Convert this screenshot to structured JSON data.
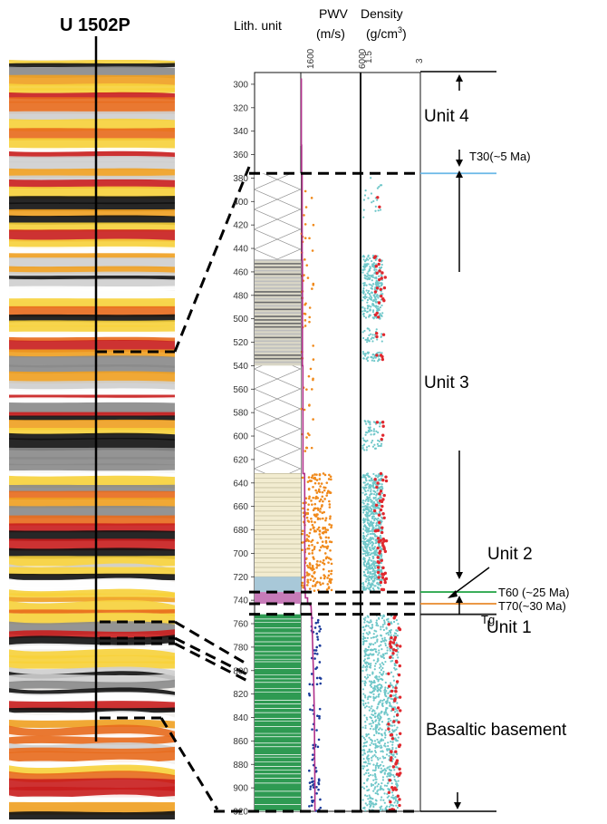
{
  "site_label": "U 1502P",
  "headers": {
    "lith": "Lith. unit",
    "pwv": "PWV",
    "pwv_unit": "(m/s)",
    "density": "Density",
    "density_unit": "(g/cm",
    "density_unit_sup": "3",
    "density_unit_close": ")"
  },
  "pwv_scale": {
    "min_label": "1600",
    "max_label": "6000",
    "min": 1600,
    "max": 6000
  },
  "density_scale": {
    "min_label": "1.5",
    "max_label": "3",
    "min": 1.5,
    "max": 3
  },
  "depth_ticks": [
    300,
    320,
    340,
    360,
    380,
    400,
    420,
    440,
    460,
    480,
    500,
    520,
    540,
    560,
    580,
    600,
    620,
    640,
    660,
    680,
    700,
    720,
    740,
    760,
    780,
    800,
    820,
    840,
    860,
    880,
    900,
    920
  ],
  "units": {
    "unit4": "Unit 4",
    "unit3": "Unit 3",
    "unit2": "Unit 2",
    "unit1": "Unit 1",
    "basement": "Basaltic basement"
  },
  "horizons": [
    {
      "label": "T30(~5 Ma)",
      "depth": 376,
      "color": "#6bb8e8"
    },
    {
      "label": "T60 (~25 Ma)",
      "depth": 733,
      "color": "#2ea84f"
    },
    {
      "label": "T70(~30 Ma)",
      "depth": 743,
      "color": "#e8892b"
    },
    {
      "label": "Tg",
      "depth": 752,
      "color": "#222222"
    }
  ],
  "pwv_profile": [
    [
      295,
      1640
    ],
    [
      352,
      1640
    ],
    [
      352,
      1660
    ],
    [
      376,
      1660
    ],
    [
      376,
      1700
    ],
    [
      450,
      1700
    ],
    [
      450,
      1720
    ],
    [
      540,
      1720
    ],
    [
      540,
      1750
    ],
    [
      600,
      1760
    ],
    [
      632,
      1760
    ],
    [
      632,
      1880
    ],
    [
      660,
      1890
    ],
    [
      730,
      1890
    ],
    [
      730,
      1920
    ],
    [
      738,
      1940
    ],
    [
      738,
      2100
    ],
    [
      742,
      2100
    ],
    [
      745,
      2350
    ],
    [
      755,
      2400
    ],
    [
      770,
      2450
    ],
    [
      790,
      2500
    ],
    [
      810,
      2550
    ],
    [
      840,
      2600
    ],
    [
      870,
      2620
    ],
    [
      900,
      2640
    ],
    [
      920,
      2640
    ]
  ],
  "colors": {
    "pwv_line": "#b0308a",
    "pwv_points_sed": "#f08a1c",
    "pwv_points_base": "#1a3a9a",
    "density_points": "#6fc7c9",
    "density_red": "#e0282e",
    "lith_green": "#2e9a52",
    "lith_pink": "#c77bb8",
    "lith_cream": "#f2ecd0"
  }
}
